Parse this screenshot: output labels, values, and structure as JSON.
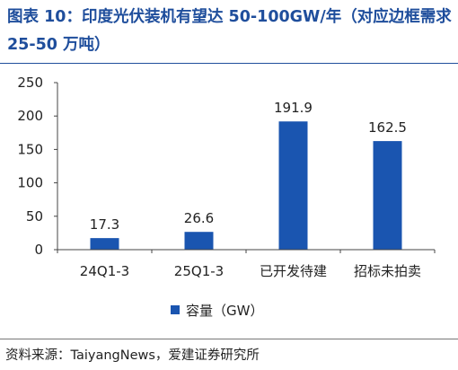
{
  "figure": {
    "title": "图表 10：印度光伏装机有望达 50-100GW/年（对应边框需求 25-50 万吨）",
    "source": "资料来源：TaiyangNews，爱建证券研究所"
  },
  "chart_data": {
    "type": "bar",
    "categories": [
      "24Q1-3",
      "25Q1-3",
      "已开发待建",
      "招标未拍卖"
    ],
    "series": [
      {
        "name": "容量（GW）",
        "values": [
          17.3,
          26.6,
          191.9,
          162.5
        ],
        "value_labels": [
          "17.3",
          "26.6",
          "191.9",
          "162.5"
        ],
        "color": "#1a55b0"
      }
    ],
    "ylim": [
      0,
      250
    ],
    "yticks": [
      "0",
      "50",
      "100",
      "150",
      "200",
      "250"
    ],
    "grid": false,
    "legend_position": "bottom"
  }
}
